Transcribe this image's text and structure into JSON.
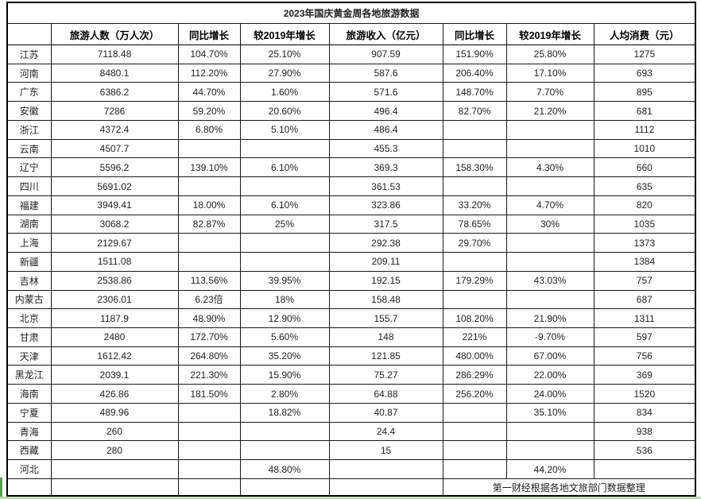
{
  "title": "2023年国庆黄金周各地旅游数据",
  "columns": [
    "",
    "旅游人数（万人次）",
    "同比增长",
    "较2019年增长",
    "旅游收入（亿元）",
    "同比增长",
    "较2019年增长",
    "人均消费（元）"
  ],
  "rows": [
    [
      "江苏",
      "7118.48",
      "104.70%",
      "25.10%",
      "907.59",
      "151.90%",
      "25.80%",
      "1275"
    ],
    [
      "河南",
      "8480.1",
      "112.20%",
      "27.90%",
      "587.6",
      "206.40%",
      "17.10%",
      "693"
    ],
    [
      "广东",
      "6386.2",
      "44.70%",
      "1.60%",
      "571.6",
      "148.70%",
      "7.70%",
      "895"
    ],
    [
      "安徽",
      "7286",
      "59.20%",
      "20.60%",
      "496.4",
      "82.70%",
      "21.20%",
      "681"
    ],
    [
      "浙江",
      "4372.4",
      "6.80%",
      "5.10%",
      "486.4",
      "",
      "",
      "1112"
    ],
    [
      "云南",
      "4507.7",
      "",
      "",
      "455.3",
      "",
      "",
      "1010"
    ],
    [
      "辽宁",
      "5596.2",
      "139.10%",
      "6.10%",
      "369.3",
      "158.30%",
      "4.30%",
      "660"
    ],
    [
      "四川",
      "5691.02",
      "",
      "",
      "361.53",
      "",
      "",
      "635"
    ],
    [
      "福建",
      "3949.41",
      "18.00%",
      "6.10%",
      "323.86",
      "33.20%",
      "4.70%",
      "820"
    ],
    [
      "湖南",
      "3068.2",
      "82.87%",
      "25%",
      "317.5",
      "78.65%",
      "30%",
      "1035"
    ],
    [
      "上海",
      "2129.67",
      "",
      "",
      "292.38",
      "29.70%",
      "",
      "1373"
    ],
    [
      "新疆",
      "1511.08",
      "",
      "",
      "209.11",
      "",
      "",
      "1384"
    ],
    [
      "吉林",
      "2538.86",
      "113.56%",
      "39.95%",
      "192.15",
      "179.29%",
      "43.03%",
      "757"
    ],
    [
      "内蒙古",
      "2306.01",
      "6.23倍",
      "18%",
      "158.48",
      "",
      "",
      "687"
    ],
    [
      "北京",
      "1187.9",
      "48.90%",
      "12.90%",
      "155.7",
      "108.20%",
      "21.90%",
      "1311"
    ],
    [
      "甘肃",
      "2480",
      "172.70%",
      "5.60%",
      "148",
      "221%",
      "-9.70%",
      "597"
    ],
    [
      "天津",
      "1612.42",
      "264.80%",
      "35.20%",
      "121.85",
      "480.00%",
      "67.00%",
      "756"
    ],
    [
      "黑龙江",
      "2039.1",
      "221.30%",
      "15.90%",
      "75.27",
      "286.29%",
      "22.00%",
      "369"
    ],
    [
      "海南",
      "426.86",
      "181.50%",
      "2.80%",
      "64.88",
      "256.20%",
      "24.00%",
      "1520"
    ],
    [
      "宁夏",
      "489.96",
      "",
      "18.82%",
      "40.87",
      "",
      "35.10%",
      "834"
    ],
    [
      "青海",
      "260",
      "",
      "",
      "24.4",
      "",
      "",
      "938"
    ],
    [
      "西藏",
      "280",
      "",
      "",
      "15",
      "",
      "",
      "536"
    ],
    [
      "河北",
      "",
      "",
      "48.80%",
      "",
      "",
      "44.20%",
      ""
    ]
  ],
  "footer": "第一财经根据各地文旅部门数据整理",
  "colors": {
    "border": "#000000",
    "selection_green": "#54a14f",
    "selection_light_green": "#bdd9b2"
  }
}
